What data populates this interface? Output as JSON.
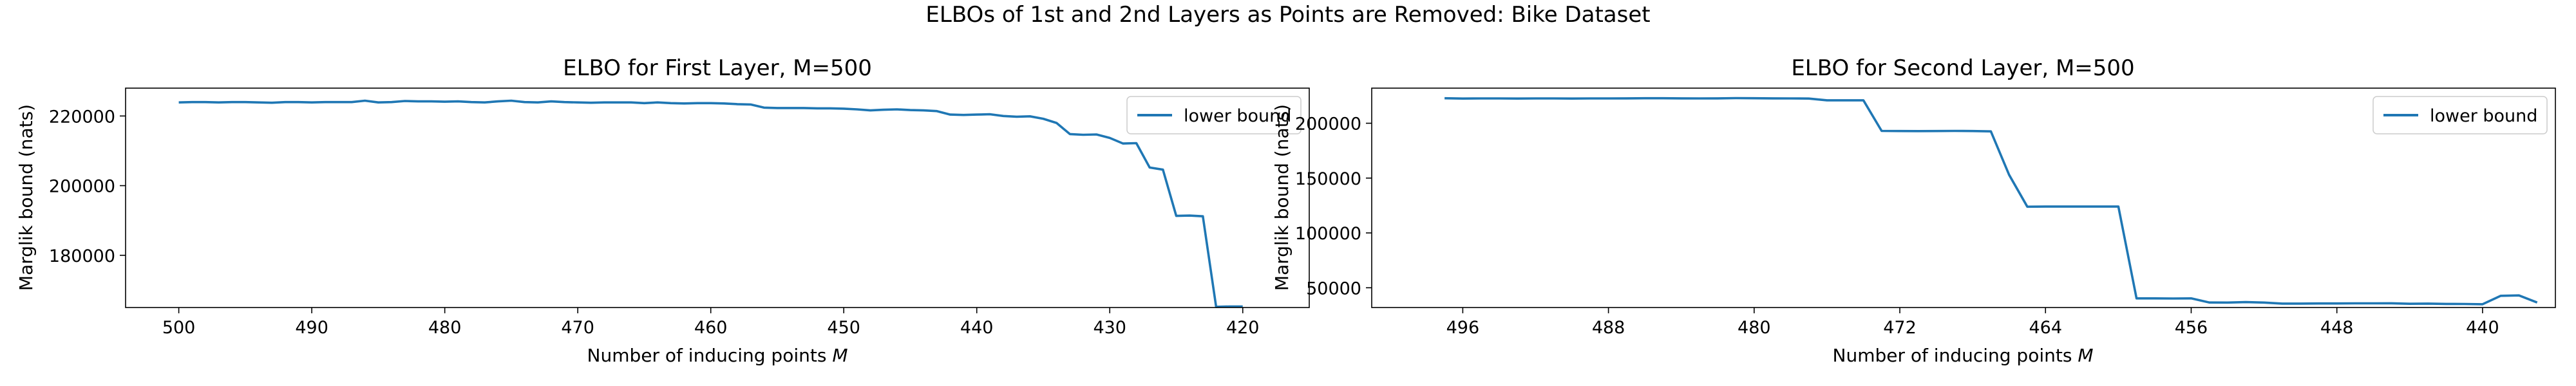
{
  "figure": {
    "suptitle": "ELBOs of 1st and 2nd Layers as Points are Removed: Bike Dataset"
  },
  "colors": {
    "series": "#1f77b4",
    "axis": "#000000",
    "legend_border": "#cccccc"
  },
  "chart_data": [
    {
      "type": "line",
      "title": "ELBO for First Layer, M=500",
      "xlabel": "Number of inducing points M",
      "ylabel": "Marglik bound (nats)",
      "xlim": [
        504,
        415
      ],
      "ylim": [
        165000,
        228000
      ],
      "xticks": [
        500,
        490,
        480,
        470,
        460,
        450,
        440,
        430,
        420
      ],
      "xtick_labels": [
        "500",
        "490",
        "480",
        "470",
        "460",
        "450",
        "440",
        "430",
        "420"
      ],
      "yticks": [
        180000,
        200000,
        220000
      ],
      "ytick_labels": [
        "180000",
        "200000",
        "220000"
      ],
      "grid": false,
      "legend": "top-right",
      "series": [
        {
          "name": "lower bound",
          "x": [
            500,
            499,
            498,
            497,
            496,
            495,
            494,
            493,
            492,
            491,
            490,
            489,
            488,
            487,
            486,
            485,
            484,
            483,
            482,
            481,
            480,
            479,
            478,
            477,
            476,
            475,
            474,
            473,
            472,
            471,
            470,
            469,
            468,
            467,
            466,
            465,
            464,
            463,
            462,
            461,
            460,
            459,
            458,
            457,
            456,
            455,
            454,
            453,
            452,
            451,
            450,
            449,
            448,
            447,
            446,
            445,
            444,
            443,
            442,
            441,
            440,
            439,
            438,
            437,
            436,
            435,
            434,
            433,
            432,
            431,
            430,
            429,
            428,
            427,
            426,
            425,
            424,
            423,
            422,
            421,
            420
          ],
          "values": [
            223900,
            224000,
            224000,
            223900,
            224000,
            224000,
            223900,
            223800,
            224000,
            224000,
            223900,
            224000,
            224000,
            224000,
            224400,
            223900,
            224000,
            224300,
            224200,
            224200,
            224100,
            224200,
            224000,
            223900,
            224200,
            224400,
            224000,
            223900,
            224200,
            224000,
            223900,
            223800,
            223900,
            223900,
            223900,
            223700,
            223900,
            223700,
            223600,
            223700,
            223700,
            223600,
            223400,
            223300,
            222400,
            222300,
            222300,
            222300,
            222200,
            222200,
            222100,
            221900,
            221600,
            221800,
            221900,
            221700,
            221600,
            221400,
            220400,
            220300,
            220400,
            220500,
            220000,
            219800,
            219900,
            219200,
            218000,
            214800,
            214600,
            214700,
            213700,
            212100,
            212200,
            205200,
            204600,
            191300,
            191400,
            191200,
            165200,
            165300,
            165300
          ]
        }
      ]
    },
    {
      "type": "line",
      "title": "ELBO for Second Layer,  M=500",
      "xlabel": "Number of inducing points M",
      "ylabel": "Marglik bound (nats)",
      "xlim": [
        501,
        436
      ],
      "ylim": [
        32000,
        232000
      ],
      "xticks": [
        496,
        488,
        480,
        472,
        464,
        456,
        448,
        440
      ],
      "xtick_labels": [
        "496",
        "488",
        "480",
        "472",
        "464",
        "456",
        "448",
        "440"
      ],
      "yticks": [
        50000,
        100000,
        150000,
        200000
      ],
      "ytick_labels": [
        "50000",
        "100000",
        "150000",
        "200000"
      ],
      "grid": false,
      "legend": "top-right",
      "series": [
        {
          "name": "lower bound",
          "x": [
            497,
            496,
            495,
            494,
            493,
            492,
            491,
            490,
            489,
            488,
            487,
            486,
            485,
            484,
            483,
            482,
            481,
            480,
            479,
            478,
            477,
            476,
            475,
            474,
            473,
            472,
            471,
            470,
            469,
            468,
            467,
            466,
            465,
            464,
            463,
            462,
            461,
            460,
            459,
            458,
            457,
            456,
            455,
            454,
            453,
            452,
            451,
            450,
            449,
            448,
            447,
            446,
            445,
            444,
            443,
            442,
            441,
            440,
            439,
            438,
            437
          ],
          "values": [
            222800,
            222500,
            222600,
            222600,
            222500,
            222600,
            222600,
            222500,
            222600,
            222600,
            222700,
            222800,
            222800,
            222700,
            222600,
            222700,
            222900,
            222800,
            222700,
            222600,
            222500,
            220900,
            220900,
            220900,
            193000,
            192900,
            192800,
            192900,
            193000,
            192900,
            192600,
            153000,
            123900,
            124000,
            124000,
            124000,
            124000,
            124100,
            40300,
            40300,
            40200,
            40300,
            36600,
            36500,
            36900,
            36500,
            35600,
            35600,
            35700,
            35700,
            35800,
            35800,
            35900,
            35400,
            35600,
            35300,
            35200,
            35000,
            42700,
            43000,
            36600
          ]
        }
      ]
    }
  ]
}
